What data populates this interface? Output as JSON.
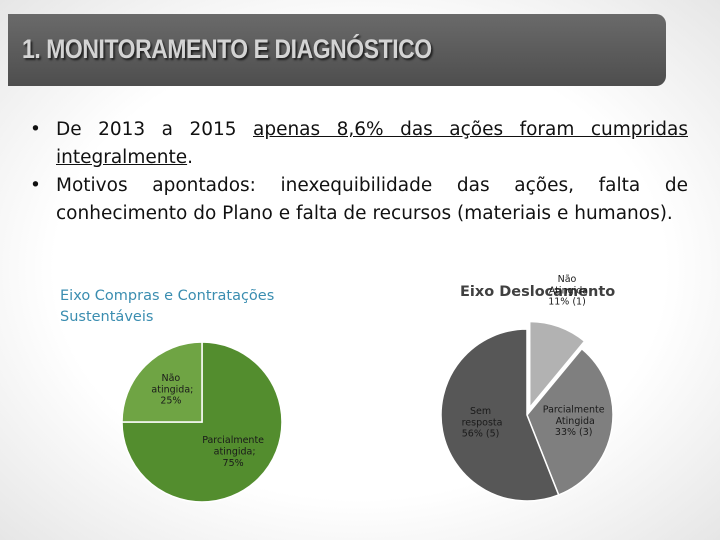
{
  "header": {
    "title": "1. MONITORAMENTO E DIAGNÓSTICO"
  },
  "bullets": [
    {
      "parts": [
        {
          "text": "De 2013 a 2015 ",
          "underline": false
        },
        {
          "text": "apenas 8,6% das ações foram cumpridas integralmente",
          "underline": true
        },
        {
          "text": ".",
          "underline": false
        }
      ]
    },
    {
      "parts": [
        {
          "text": "Motivos apontados: inexequibilidade das ações, falta de conhecimento do Plano e falta de recursos (materiais e humanos).",
          "underline": false
        }
      ]
    }
  ],
  "chart_data": [
    {
      "type": "pie",
      "title": "Eixo Compras e Contratações Sustentáveis",
      "title_color": "#3a8db0",
      "categories": [
        "Parcialmente atingida;",
        "Não atingida;"
      ],
      "values": [
        75,
        25
      ],
      "value_labels": [
        "75%",
        "25%"
      ],
      "colors": [
        "#538d2e",
        "#6fa444"
      ]
    },
    {
      "type": "pie",
      "title": "Eixo Deslocamento",
      "title_color": "#404040",
      "categories": [
        "Não Atingida",
        "Parcialmente Atingida",
        "Sem resposta"
      ],
      "values": [
        11,
        33,
        56
      ],
      "value_labels": [
        "11% (1)",
        "33% (3)",
        "56% (5)"
      ],
      "colors": [
        "#b2b2b2",
        "#7f7f7f",
        "#575757"
      ]
    }
  ]
}
